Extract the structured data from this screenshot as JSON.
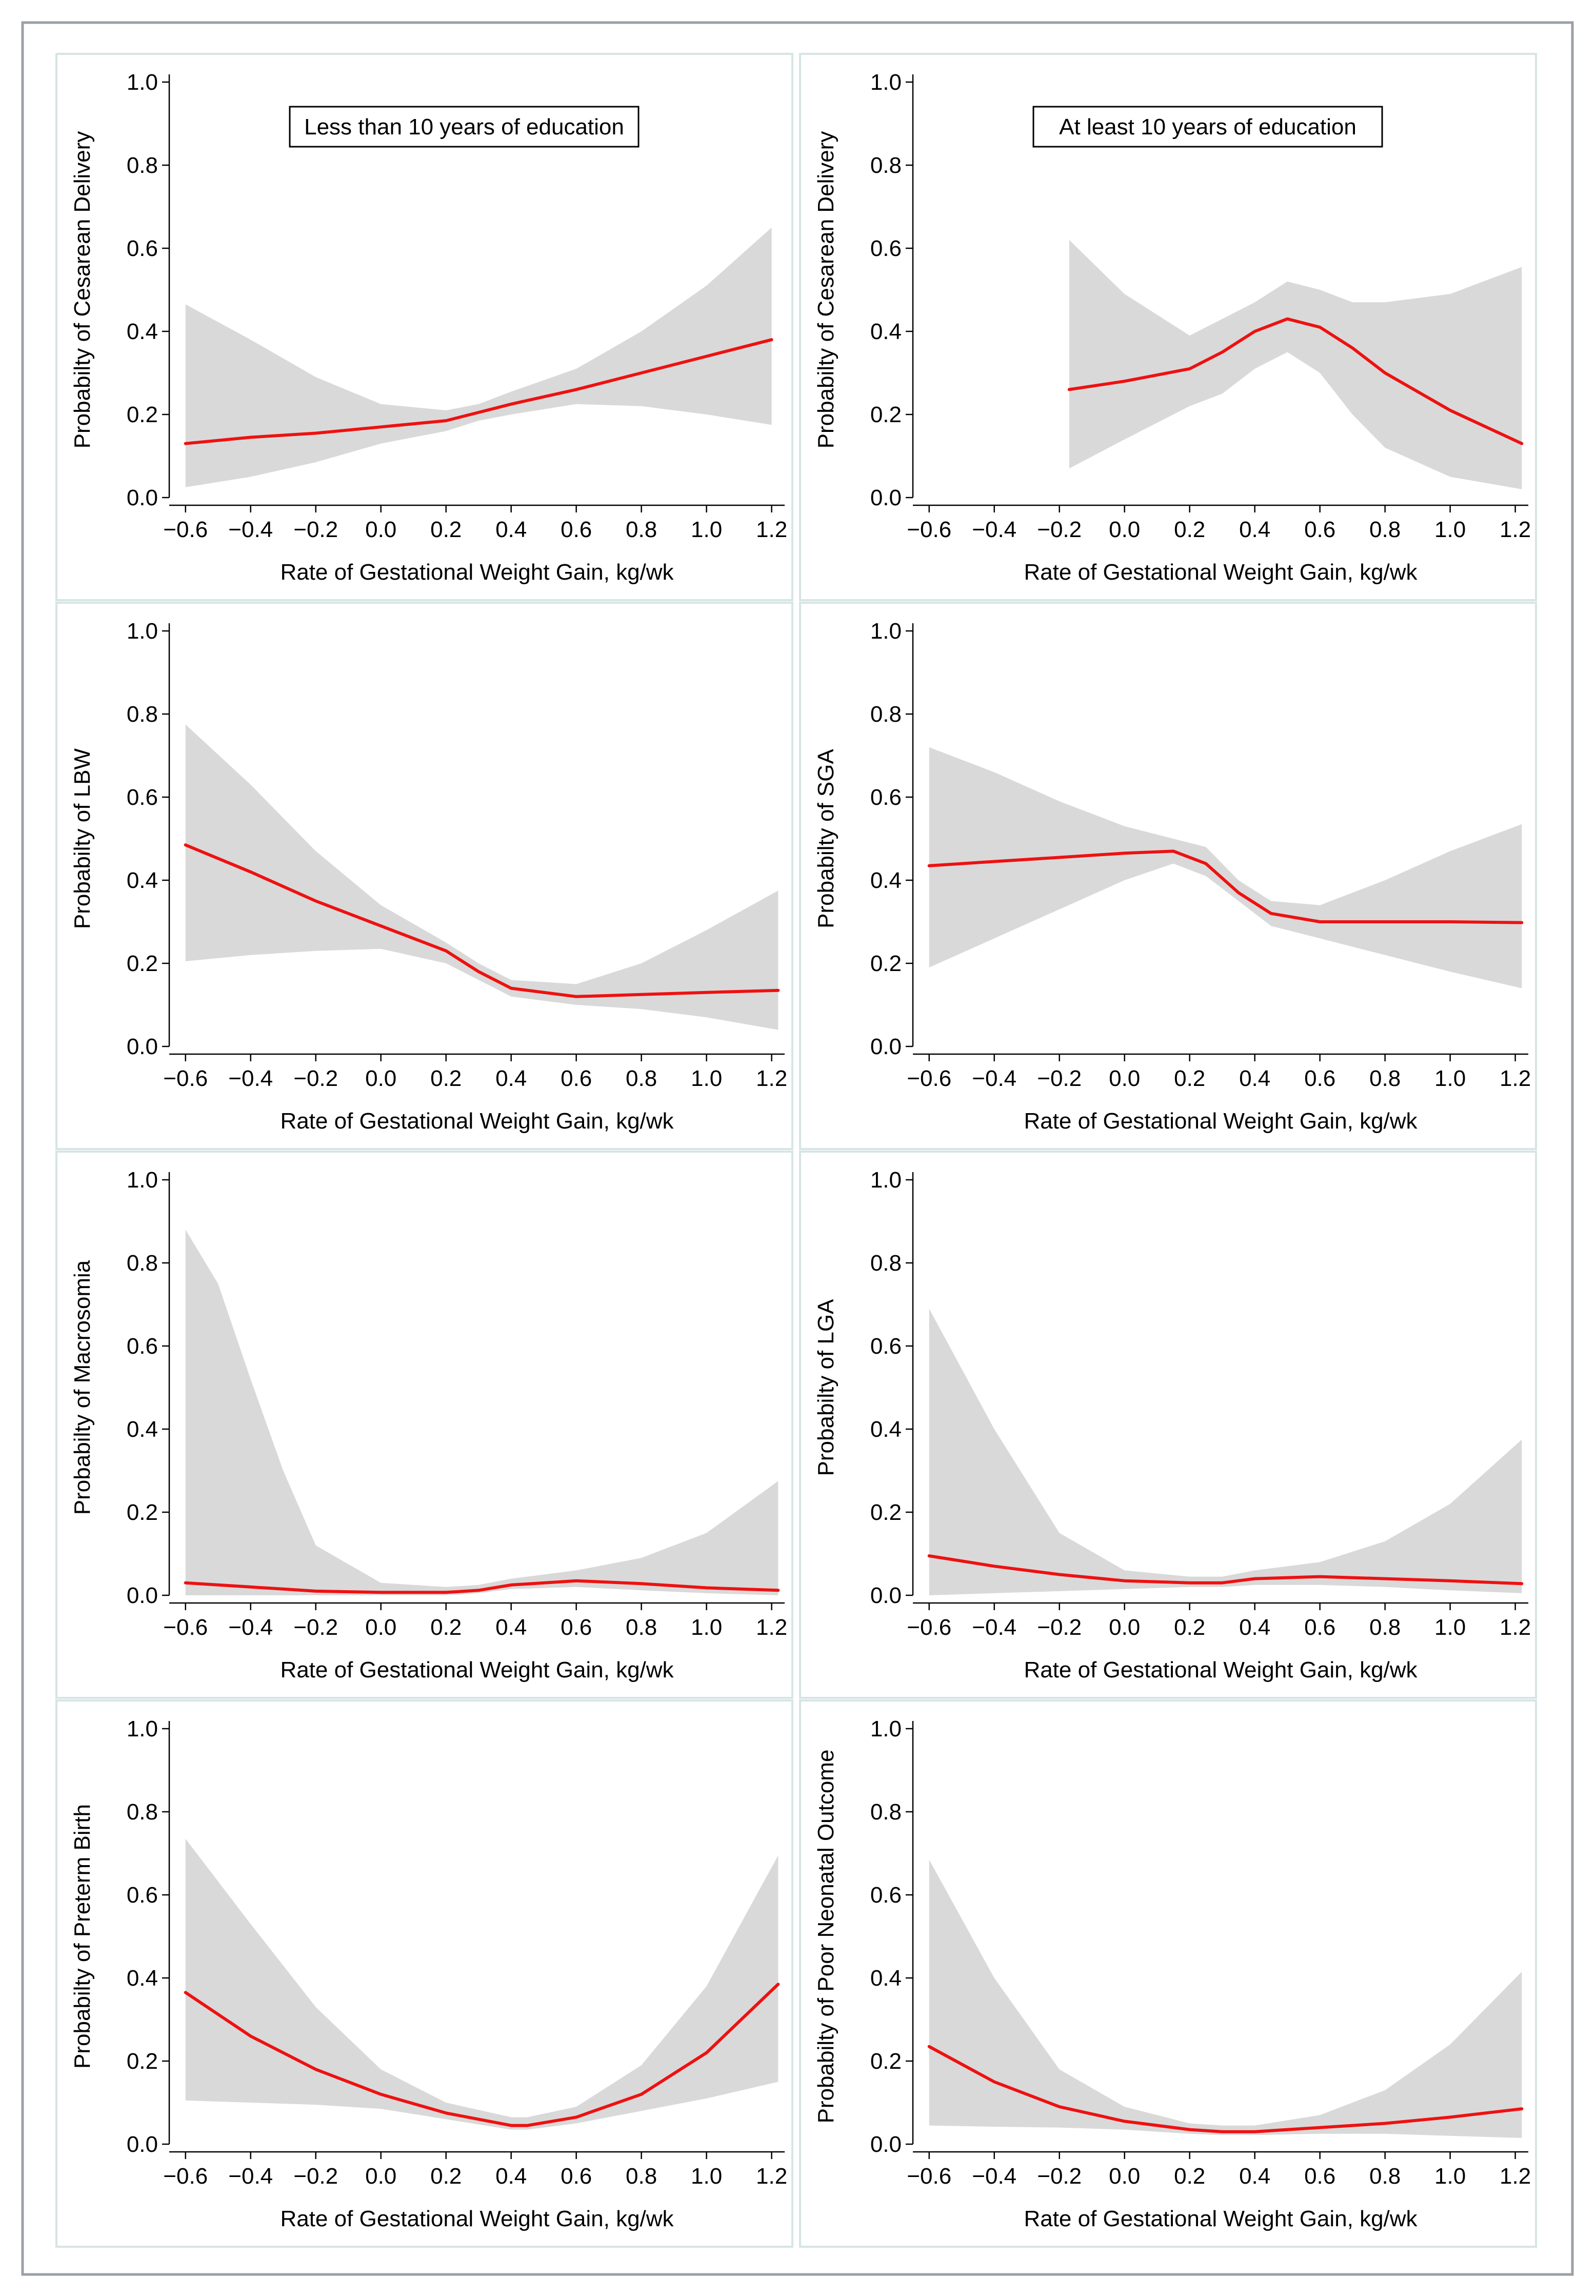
{
  "chart_data": [
    {
      "type": "line",
      "title": "Less than 10 years of education",
      "xlabel": "Rate of Gestational Weight Gain, kg/wk",
      "ylabel": "Probabilty of Cesarean Delivery",
      "xlim": [
        -0.65,
        1.24
      ],
      "ylim": [
        0,
        1.0
      ],
      "xticks": [
        "−0.6",
        "−0.4",
        "−0.2",
        "0.0",
        "0.2",
        "0.4",
        "0.6",
        "0.8",
        "1.0",
        "1.2"
      ],
      "yticks": [
        "0.0",
        "0.2",
        "0.4",
        "0.6",
        "0.8",
        "1.0"
      ],
      "series": [
        {
          "x": [
            -0.6,
            -0.4,
            -0.2,
            0.0,
            0.2,
            0.3,
            0.4,
            0.6,
            0.8,
            1.0,
            1.2
          ],
          "y": [
            0.13,
            0.145,
            0.155,
            0.17,
            0.185,
            0.205,
            0.225,
            0.26,
            0.3,
            0.34,
            0.38
          ],
          "lower": [
            0.025,
            0.05,
            0.085,
            0.13,
            0.16,
            0.185,
            0.2,
            0.225,
            0.22,
            0.2,
            0.175
          ],
          "upper": [
            0.465,
            0.38,
            0.29,
            0.225,
            0.21,
            0.225,
            0.255,
            0.31,
            0.4,
            0.51,
            0.65
          ]
        }
      ]
    },
    {
      "type": "line",
      "title": "At least 10 years of education",
      "xlabel": "Rate of Gestational Weight Gain, kg/wk",
      "ylabel": "Probabilty of Cesarean Delivery",
      "xlim": [
        -0.65,
        1.24
      ],
      "ylim": [
        0,
        1.0
      ],
      "xticks": [
        "−0.6",
        "−0.4",
        "−0.2",
        "0.0",
        "0.2",
        "0.4",
        "0.6",
        "0.8",
        "1.0",
        "1.2"
      ],
      "yticks": [
        "0.0",
        "0.2",
        "0.4",
        "0.6",
        "0.8",
        "1.0"
      ],
      "series": [
        {
          "x": [
            -0.17,
            0.0,
            0.2,
            0.3,
            0.4,
            0.5,
            0.6,
            0.7,
            0.8,
            1.0,
            1.22
          ],
          "y": [
            0.26,
            0.28,
            0.31,
            0.35,
            0.4,
            0.43,
            0.41,
            0.36,
            0.3,
            0.21,
            0.13
          ],
          "lower": [
            0.07,
            0.14,
            0.22,
            0.25,
            0.31,
            0.35,
            0.3,
            0.2,
            0.12,
            0.05,
            0.02
          ],
          "upper": [
            0.62,
            0.49,
            0.39,
            0.43,
            0.47,
            0.52,
            0.5,
            0.47,
            0.47,
            0.49,
            0.555
          ]
        }
      ]
    },
    {
      "type": "line",
      "title": "",
      "xlabel": "Rate of Gestational Weight Gain, kg/wk",
      "ylabel": "Probabilty of LBW",
      "xlim": [
        -0.65,
        1.24
      ],
      "ylim": [
        0,
        1.0
      ],
      "xticks": [
        "−0.6",
        "−0.4",
        "−0.2",
        "0.0",
        "0.2",
        "0.4",
        "0.6",
        "0.8",
        "1.0",
        "1.2"
      ],
      "yticks": [
        "0.0",
        "0.2",
        "0.4",
        "0.6",
        "0.8",
        "1.0"
      ],
      "series": [
        {
          "x": [
            -0.6,
            -0.4,
            -0.2,
            0.0,
            0.2,
            0.3,
            0.4,
            0.6,
            0.8,
            1.0,
            1.22
          ],
          "y": [
            0.485,
            0.42,
            0.35,
            0.29,
            0.23,
            0.18,
            0.14,
            0.12,
            0.125,
            0.13,
            0.135
          ],
          "lower": [
            0.205,
            0.22,
            0.23,
            0.235,
            0.2,
            0.16,
            0.12,
            0.1,
            0.09,
            0.07,
            0.04
          ],
          "upper": [
            0.775,
            0.63,
            0.47,
            0.34,
            0.25,
            0.2,
            0.16,
            0.15,
            0.2,
            0.28,
            0.375
          ]
        }
      ]
    },
    {
      "type": "line",
      "title": "",
      "xlabel": "Rate of Gestational Weight Gain, kg/wk",
      "ylabel": "Probabilty of SGA",
      "xlim": [
        -0.65,
        1.24
      ],
      "ylim": [
        0,
        1.0
      ],
      "xticks": [
        "−0.6",
        "−0.4",
        "−0.2",
        "0.0",
        "0.2",
        "0.4",
        "0.6",
        "0.8",
        "1.0",
        "1.2"
      ],
      "yticks": [
        "0.0",
        "0.2",
        "0.4",
        "0.6",
        "0.8",
        "1.0"
      ],
      "series": [
        {
          "x": [
            -0.6,
            -0.4,
            -0.2,
            0.0,
            0.15,
            0.25,
            0.35,
            0.45,
            0.6,
            0.8,
            1.0,
            1.22
          ],
          "y": [
            0.435,
            0.445,
            0.455,
            0.465,
            0.47,
            0.44,
            0.37,
            0.32,
            0.3,
            0.3,
            0.3,
            0.298
          ],
          "lower": [
            0.19,
            0.26,
            0.33,
            0.4,
            0.44,
            0.41,
            0.35,
            0.29,
            0.26,
            0.22,
            0.18,
            0.14
          ],
          "upper": [
            0.72,
            0.66,
            0.59,
            0.53,
            0.5,
            0.48,
            0.4,
            0.35,
            0.34,
            0.4,
            0.47,
            0.535
          ]
        }
      ]
    },
    {
      "type": "line",
      "title": "",
      "xlabel": "Rate of Gestational Weight Gain, kg/wk",
      "ylabel": "Probabilty of Macrosomia",
      "xlim": [
        -0.65,
        1.24
      ],
      "ylim": [
        0,
        1.0
      ],
      "xticks": [
        "−0.6",
        "−0.4",
        "−0.2",
        "0.0",
        "0.2",
        "0.4",
        "0.6",
        "0.8",
        "1.0",
        "1.2"
      ],
      "yticks": [
        "0.0",
        "0.2",
        "0.4",
        "0.6",
        "0.8",
        "1.0"
      ],
      "series": [
        {
          "x": [
            -0.6,
            -0.5,
            -0.4,
            -0.3,
            -0.2,
            0.0,
            0.2,
            0.3,
            0.4,
            0.6,
            0.8,
            1.0,
            1.22
          ],
          "y": [
            0.03,
            0.025,
            0.02,
            0.015,
            0.01,
            0.007,
            0.007,
            0.012,
            0.025,
            0.035,
            0.028,
            0.018,
            0.012
          ],
          "lower": [
            0.0,
            0.0,
            0.0,
            0.0,
            0.0,
            0.0,
            0.0,
            0.005,
            0.015,
            0.02,
            0.012,
            0.005,
            0.0
          ],
          "upper": [
            0.88,
            0.75,
            0.52,
            0.3,
            0.12,
            0.03,
            0.02,
            0.025,
            0.04,
            0.06,
            0.09,
            0.15,
            0.275
          ]
        }
      ]
    },
    {
      "type": "line",
      "title": "",
      "xlabel": "Rate of Gestational Weight Gain, kg/wk",
      "ylabel": "Probabilty of LGA",
      "xlim": [
        -0.65,
        1.24
      ],
      "ylim": [
        0,
        1.0
      ],
      "xticks": [
        "−0.6",
        "−0.4",
        "−0.2",
        "0.0",
        "0.2",
        "0.4",
        "0.6",
        "0.8",
        "1.0",
        "1.2"
      ],
      "yticks": [
        "0.0",
        "0.2",
        "0.4",
        "0.6",
        "0.8",
        "1.0"
      ],
      "series": [
        {
          "x": [
            -0.6,
            -0.4,
            -0.2,
            0.0,
            0.2,
            0.3,
            0.4,
            0.6,
            0.8,
            1.0,
            1.22
          ],
          "y": [
            0.095,
            0.07,
            0.05,
            0.035,
            0.03,
            0.03,
            0.04,
            0.045,
            0.04,
            0.035,
            0.028
          ],
          "lower": [
            0.0,
            0.005,
            0.01,
            0.015,
            0.02,
            0.02,
            0.025,
            0.025,
            0.02,
            0.012,
            0.005
          ],
          "upper": [
            0.69,
            0.4,
            0.15,
            0.06,
            0.045,
            0.045,
            0.06,
            0.08,
            0.13,
            0.22,
            0.375
          ]
        }
      ]
    },
    {
      "type": "line",
      "title": "",
      "xlabel": "Rate of Gestational Weight Gain, kg/wk",
      "ylabel": "Probabilty of Preterm Birth",
      "xlim": [
        -0.65,
        1.24
      ],
      "ylim": [
        0,
        1.0
      ],
      "xticks": [
        "−0.6",
        "−0.4",
        "−0.2",
        "0.0",
        "0.2",
        "0.4",
        "0.6",
        "0.8",
        "1.0",
        "1.2"
      ],
      "yticks": [
        "0.0",
        "0.2",
        "0.4",
        "0.6",
        "0.8",
        "1.0"
      ],
      "series": [
        {
          "x": [
            -0.6,
            -0.4,
            -0.2,
            0.0,
            0.2,
            0.4,
            0.45,
            0.6,
            0.8,
            1.0,
            1.22
          ],
          "y": [
            0.365,
            0.26,
            0.18,
            0.12,
            0.075,
            0.045,
            0.045,
            0.065,
            0.12,
            0.22,
            0.385
          ],
          "lower": [
            0.105,
            0.1,
            0.095,
            0.085,
            0.06,
            0.035,
            0.035,
            0.05,
            0.08,
            0.11,
            0.15
          ],
          "upper": [
            0.735,
            0.53,
            0.33,
            0.18,
            0.1,
            0.065,
            0.065,
            0.09,
            0.19,
            0.38,
            0.695
          ]
        }
      ]
    },
    {
      "type": "line",
      "title": "",
      "xlabel": "Rate of Gestational Weight Gain, kg/wk",
      "ylabel": "Probabilty of Poor Neonatal Outcome",
      "xlim": [
        -0.65,
        1.24
      ],
      "ylim": [
        0,
        1.0
      ],
      "xticks": [
        "−0.6",
        "−0.4",
        "−0.2",
        "0.0",
        "0.2",
        "0.4",
        "0.6",
        "0.8",
        "1.0",
        "1.2"
      ],
      "yticks": [
        "0.0",
        "0.2",
        "0.4",
        "0.6",
        "0.8",
        "1.0"
      ],
      "series": [
        {
          "x": [
            -0.6,
            -0.4,
            -0.2,
            0.0,
            0.2,
            0.3,
            0.4,
            0.6,
            0.8,
            1.0,
            1.22
          ],
          "y": [
            0.235,
            0.15,
            0.09,
            0.055,
            0.035,
            0.03,
            0.03,
            0.04,
            0.05,
            0.065,
            0.085
          ],
          "lower": [
            0.045,
            0.042,
            0.04,
            0.035,
            0.025,
            0.022,
            0.022,
            0.025,
            0.025,
            0.02,
            0.015
          ],
          "upper": [
            0.685,
            0.4,
            0.18,
            0.09,
            0.05,
            0.045,
            0.045,
            0.07,
            0.13,
            0.24,
            0.415
          ]
        }
      ]
    }
  ],
  "colors": {
    "line": "#ee1111",
    "band": "#d9d9d9",
    "panel_border": "#d6e4e4",
    "outer_border": "#9aa0a6"
  }
}
